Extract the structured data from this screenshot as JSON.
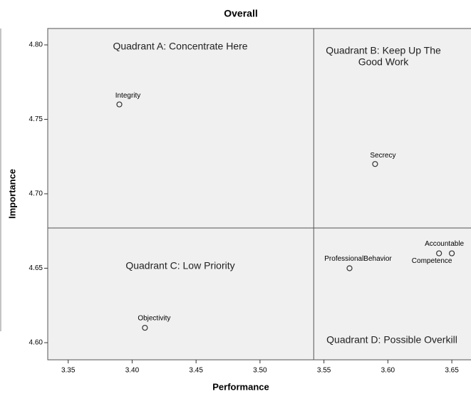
{
  "chart_data": {
    "type": "scatter",
    "title": "Overall",
    "x_label": "Performance",
    "y_label": "Importance",
    "labels": [
      "Integrity",
      "Secrecy",
      "ProfessionalBehavior",
      "Competence",
      "Accountable",
      "Objectivity"
    ],
    "x": [
      3.39,
      3.59,
      3.57,
      3.64,
      3.65,
      3.41
    ],
    "y": [
      4.76,
      4.72,
      4.65,
      4.66,
      4.66,
      4.61
    ],
    "xlim": [
      3.334,
      3.665
    ],
    "ylim": [
      4.5885,
      4.811
    ],
    "xticks": [
      3.35,
      {
        "value": 3.4,
        "label": "3.40"
      },
      3.45,
      {
        "value": 3.5,
        "label": "3.50"
      },
      3.55,
      {
        "value": 3.6,
        "label": "3.60"
      },
      3.65
    ],
    "yticks": [
      {
        "value": 4.6,
        "label": "4.60"
      },
      4.65,
      {
        "value": 4.7,
        "label": "4.70"
      },
      4.75,
      {
        "value": 4.8,
        "label": "4.80"
      }
    ],
    "reference_x": 3.542,
    "reference_y": 4.677,
    "annotations": [
      [
        "Quadrant A: Concentrate Here"
      ],
      [
        "Quadrant B: Keep Up The",
        "Good Work"
      ],
      [
        "Quadrant C: Low Priority"
      ],
      [
        "Quadrant D: Possible Overkill"
      ]
    ],
    "marker_color": "#333333",
    "background": "#f0f0f0"
  }
}
